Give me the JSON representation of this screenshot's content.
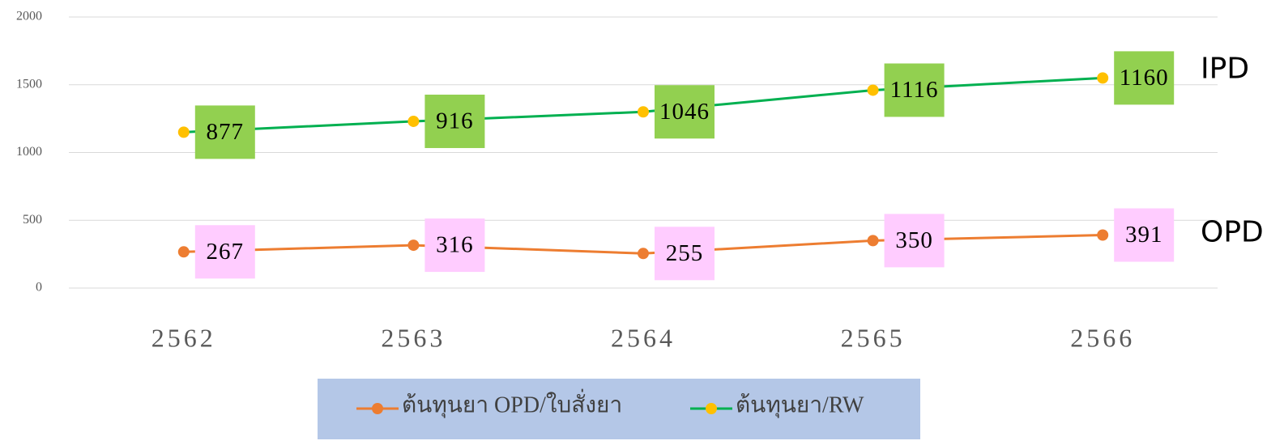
{
  "chart_data": {
    "type": "line",
    "categories": [
      "2562",
      "2563",
      "2564",
      "2565",
      "2566"
    ],
    "series": [
      {
        "name": "ต้นทุนยา OPD/ใบสั่งยา",
        "color": "#ed7d31",
        "marker_color": "#ed7d31",
        "label_box_color": "#ffccff",
        "values": [
          267,
          316,
          255,
          350,
          391
        ]
      },
      {
        "name": "ต้นทุนยา/RW",
        "color": "#00b050",
        "marker_color": "#ffc000",
        "label_box_color": "#92d050",
        "values": [
          1150,
          1230,
          1300,
          1460,
          1550
        ],
        "value_labels": null,
        "box_texts": [
          "877",
          "916",
          "1046",
          "1116",
          "1160"
        ]
      }
    ],
    "series_annotations": [
      "OPD",
      "IPD"
    ],
    "ylim": [
      0,
      2000
    ],
    "yticks": [
      0,
      500,
      1000,
      1500,
      2000
    ],
    "grid": true,
    "legend": "bottom"
  }
}
